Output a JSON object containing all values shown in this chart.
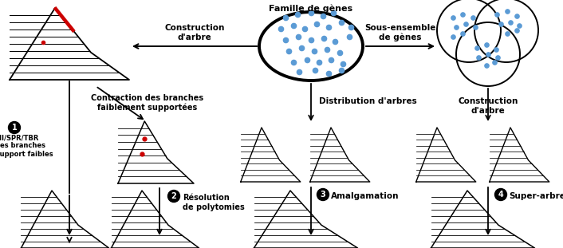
{
  "bg_color": "#ffffff",
  "tree_color": "#000000",
  "red_color": "#cc0000",
  "blue_dot_color": "#5b9bd5",
  "arrow_color": "#000000",
  "labels": {
    "famille": "Famille de gènes",
    "sous_ensemble": "Sous-ensemble\nde gènes",
    "construction1": "Construction\nd'arbre",
    "construction2": "Construction\nd'arbre",
    "contraction": "Contraction des branches\nfaiblement supportées",
    "distribution": "Distribution d'arbres",
    "resolution": "Résolution\nde polytomies",
    "amalgamation": "Amalgamation",
    "super_arbre": "Super-arbre",
    "nni": "NNI/SPR/TBR\nsur les branches\navec support faibles"
  }
}
